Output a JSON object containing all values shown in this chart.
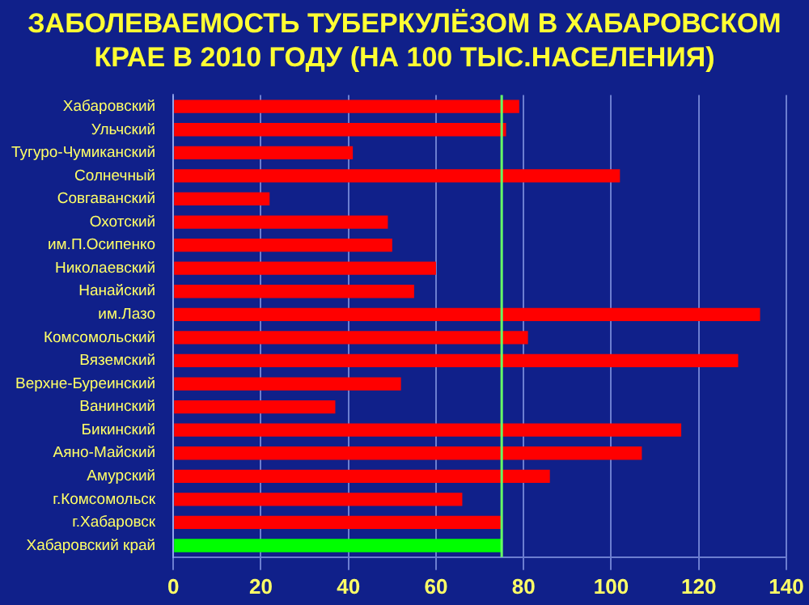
{
  "chart_data": {
    "type": "bar",
    "orientation": "horizontal",
    "title": "ЗАБОЛЕВАЕМОСТЬ ТУБЕРКУЛЁЗОМ В ХАБАРОВСКОМ КРАЕ В 2010 ГОДУ (НА 100 ТЫС.НАСЕЛЕНИЯ)",
    "categories": [
      "Хабаровский",
      "Ульчский",
      "Тугуро-Чумиканский",
      "Солнечный",
      "Совгаванский",
      "Охотский",
      "им.П.Осипенко",
      "Николаевский",
      "Нанайский",
      "им.Лазо",
      "Комсомольский",
      "Вяземский",
      "Верхне-Буреинский",
      "Ванинский",
      "Бикинский",
      "Аяно-Майский",
      "Амурский",
      "г.Комсомольск",
      "г.Хабаровск",
      "Хабаровский край"
    ],
    "values": [
      79,
      76,
      41,
      102,
      22,
      49,
      50,
      60,
      55,
      134,
      81,
      129,
      52,
      37,
      116,
      107,
      86,
      66,
      75,
      75
    ],
    "colors": [
      "#ff0000",
      "#ff0000",
      "#ff0000",
      "#ff0000",
      "#ff0000",
      "#ff0000",
      "#ff0000",
      "#ff0000",
      "#ff0000",
      "#ff0000",
      "#ff0000",
      "#ff0000",
      "#ff0000",
      "#ff0000",
      "#ff0000",
      "#ff0000",
      "#ff0000",
      "#ff0000",
      "#ff0000",
      "#00ff00"
    ],
    "xlim": [
      0,
      140
    ],
    "xticks": [
      0,
      20,
      40,
      60,
      80,
      100,
      120,
      140
    ],
    "grid": "x",
    "legend": false,
    "ref_lines": [
      {
        "axis": "x",
        "value": 75,
        "color": "#66ff66"
      }
    ]
  }
}
